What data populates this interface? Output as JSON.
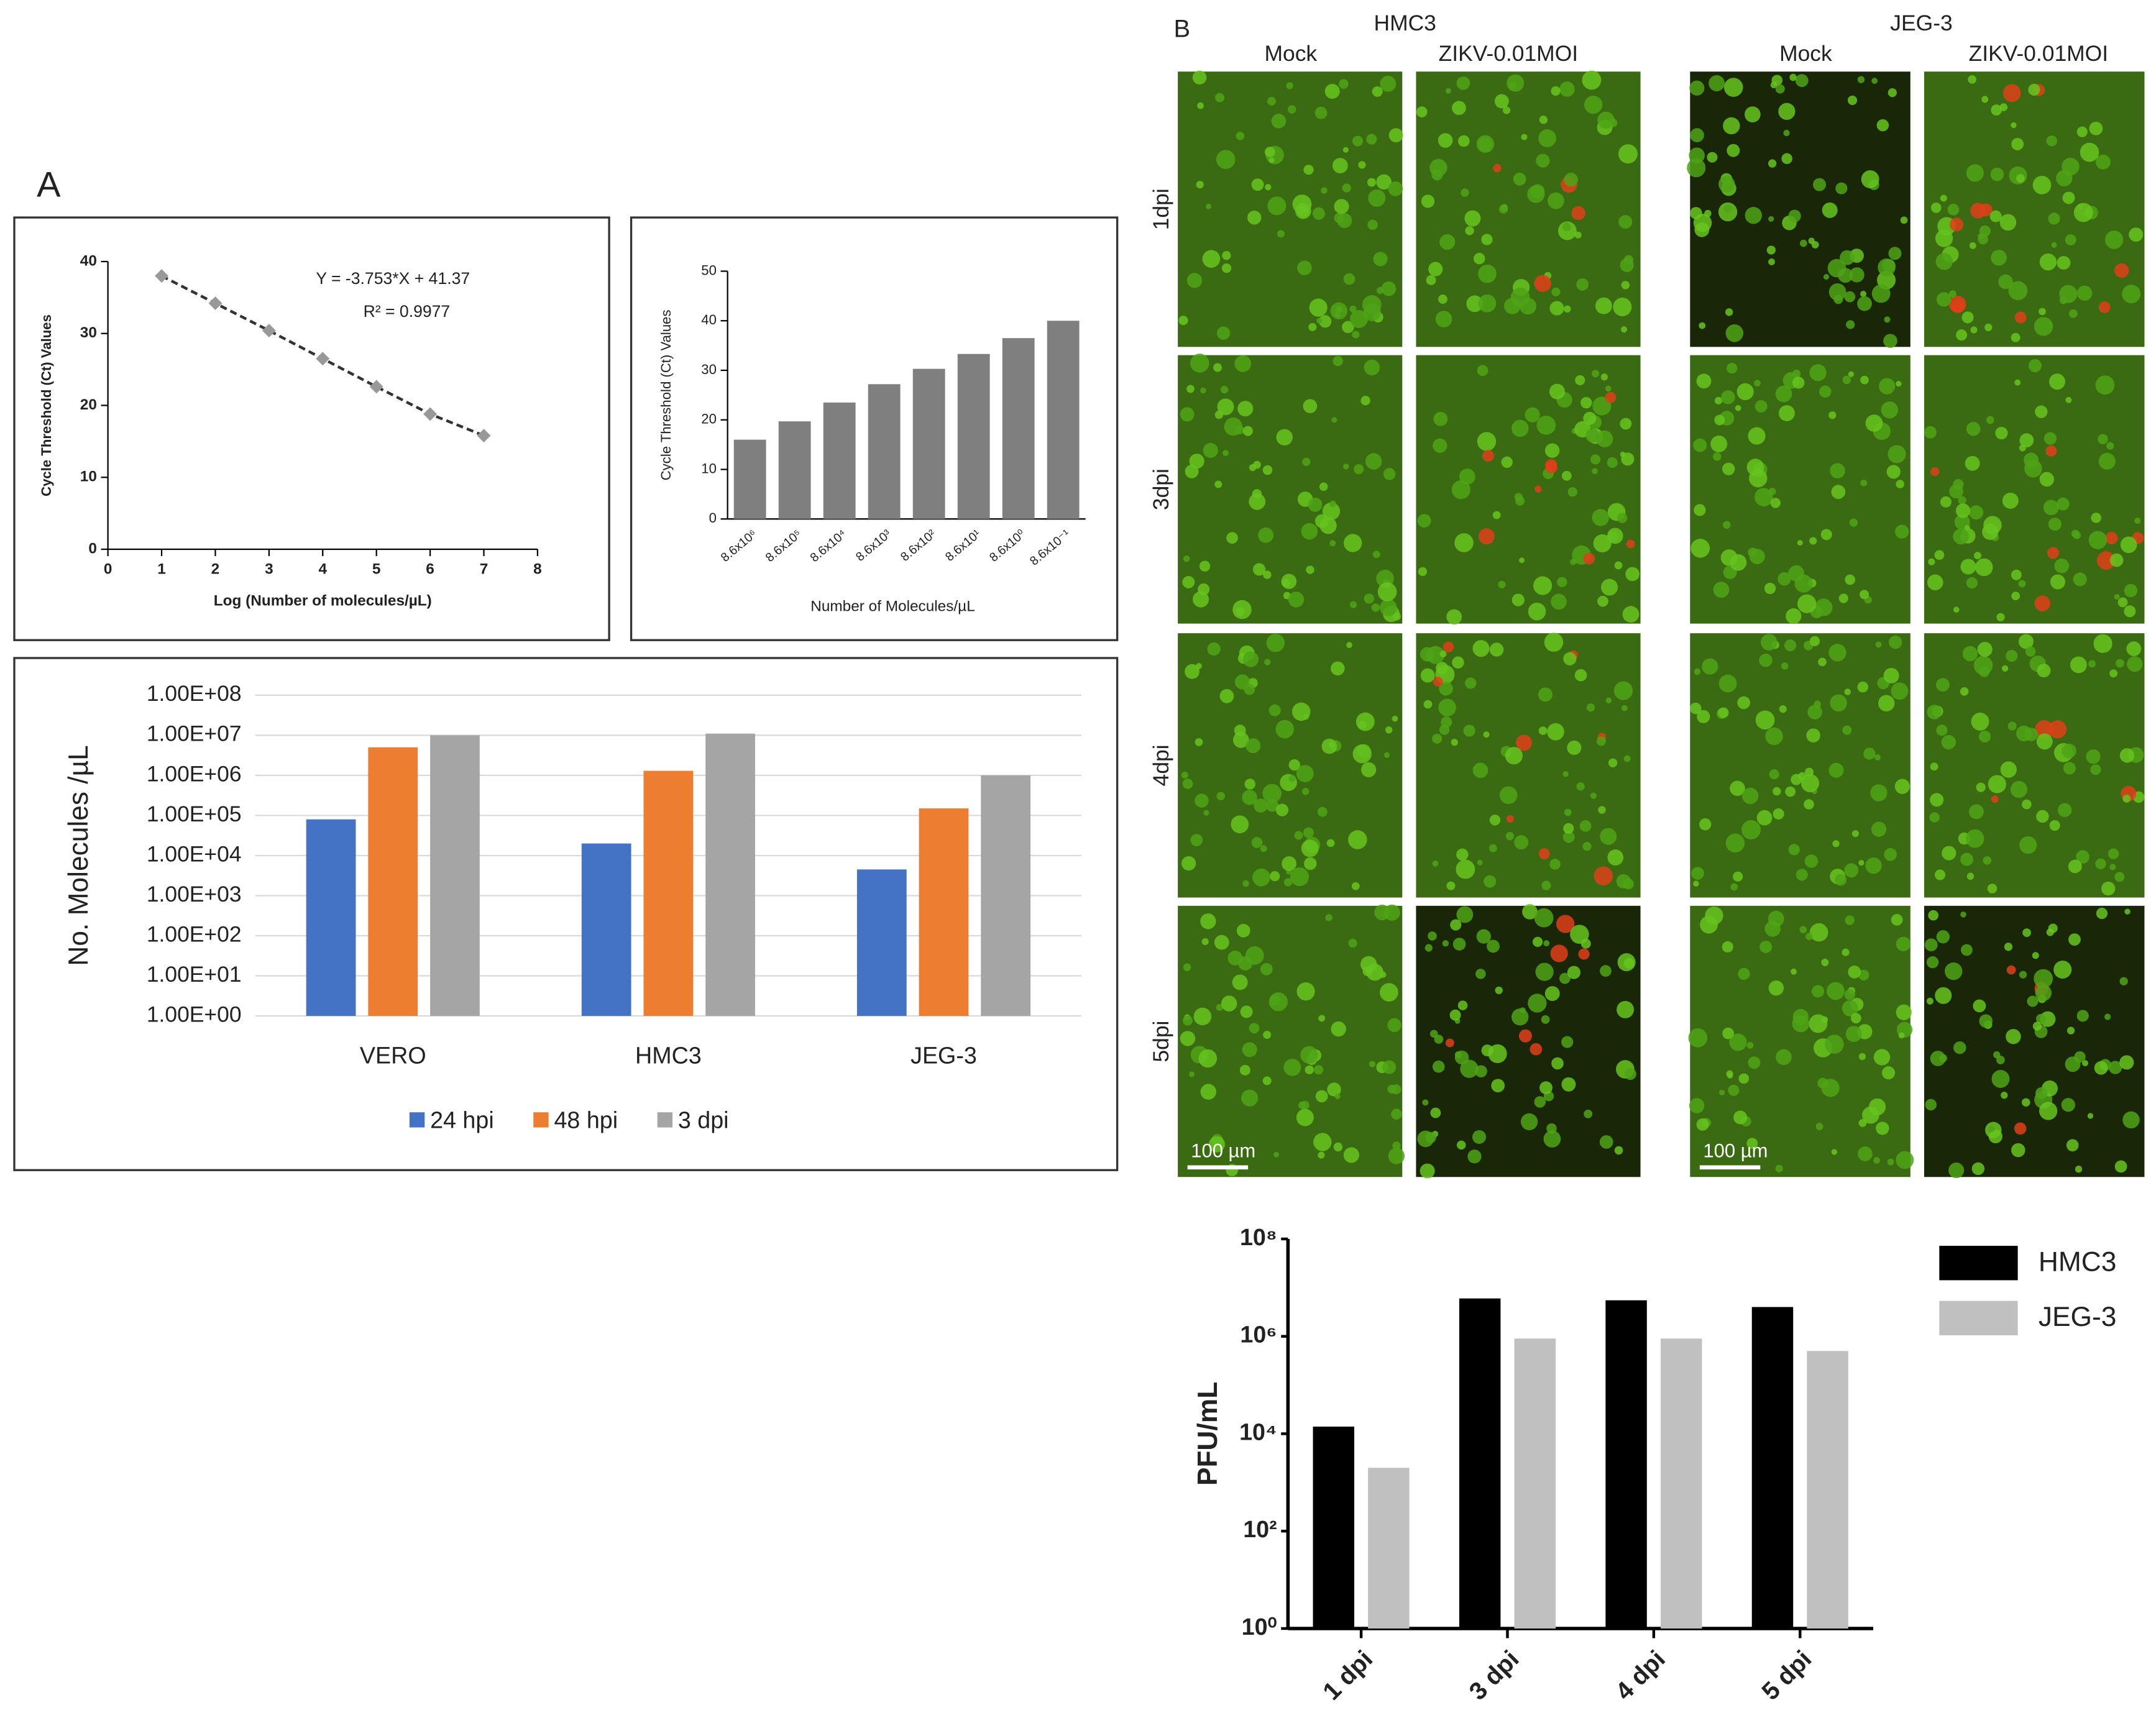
{
  "chart_data": [
    {
      "type": "line",
      "x_label": "Log (Number of molecules/µL)",
      "y_label": "Cycle Threshold (Ct) Values",
      "annotations": [
        "Y = -3.753*X + 41.37",
        "R² = 0.9977"
      ],
      "x": [
        1,
        2,
        3,
        4,
        5,
        6,
        7
      ],
      "y": [
        38,
        34.2,
        30.4,
        26.5,
        22.6,
        18.8,
        15.8
      ],
      "color": "#999999",
      "xlim": [
        0,
        8
      ],
      "xticks": [
        0,
        1,
        2,
        3,
        4,
        5,
        6,
        7,
        8
      ],
      "ylim": [
        0,
        40
      ],
      "yticks": [
        0,
        10,
        20,
        30,
        40
      ],
      "grid": false
    },
    {
      "type": "bar",
      "x_label": "Number of Molecules/µL",
      "y_label": "Cycle Threshold (Ct) Values",
      "categories": [
        "8.6x10⁶",
        "8.6x10⁵",
        "8.6x10⁴",
        "8.6x10³",
        "8.6x10²",
        "8.6x10¹",
        "8.6x10⁰",
        "8.6x10⁻¹"
      ],
      "values": [
        16,
        19.7,
        23.5,
        27.2,
        30.3,
        33.3,
        36.5,
        40
      ],
      "color": "#7f7f7f",
      "ylim": [
        0,
        50
      ],
      "yticks": [
        0,
        10,
        20,
        30,
        40,
        50
      ],
      "grid": false
    },
    {
      "type": "grouped-bar",
      "y_label": "No. Molecules /µL",
      "log_scale": true,
      "grid": true,
      "legend": "bottom",
      "categories": [
        "VERO",
        "HMC3",
        "JEG-3"
      ],
      "series": [
        {
          "name": "24 hpi",
          "color": "#4472c4",
          "values": [
            80000,
            20000,
            4500
          ]
        },
        {
          "name": "48 hpi",
          "color": "#ed7d31",
          "values": [
            5000000,
            1300000,
            150000
          ]
        },
        {
          "name": "3 dpi",
          "color": "#a5a5a5",
          "values": [
            10000000,
            11000000,
            1000000
          ]
        }
      ],
      "ylim": [
        1,
        100000000
      ],
      "yticks": [
        {
          "value": 1,
          "label": "1.00E+00"
        },
        {
          "value": 10,
          "label": "1.00E+01"
        },
        {
          "value": 100,
          "label": "1.00E+02"
        },
        {
          "value": 1000,
          "label": "1.00E+03"
        },
        {
          "value": 10000,
          "label": "1.00E+04"
        },
        {
          "value": 100000,
          "label": "1.00E+05"
        },
        {
          "value": 1000000,
          "label": "1.00E+06"
        },
        {
          "value": 10000000,
          "label": "1.00E+07"
        },
        {
          "value": 100000000,
          "label": "1.00E+08"
        }
      ]
    },
    {
      "type": "grouped-bar",
      "y_label": "PFU/mL",
      "log_scale": true,
      "grid": false,
      "legend": "right",
      "categories": [
        "1 dpi",
        "3 dpi",
        "4 dpi",
        "5 dpi"
      ],
      "series": [
        {
          "name": "HMC3",
          "color": "#000000",
          "values": [
            14000,
            6000000,
            5500000,
            4000000
          ]
        },
        {
          "name": "JEG-3",
          "color": "#c0c0c0",
          "values": [
            2000,
            900000,
            900000,
            500000
          ]
        }
      ],
      "ylim": [
        1,
        100000000
      ],
      "yticks": [
        {
          "value": 1,
          "label": "10⁰"
        },
        {
          "value": 100,
          "label": "10²"
        },
        {
          "value": 10000,
          "label": "10⁴"
        },
        {
          "value": 1000000,
          "label": "10⁶"
        },
        {
          "value": 100000000,
          "label": "10⁸"
        }
      ]
    }
  ],
  "panel_labels": [
    "A",
    "B"
  ],
  "micrographs": {
    "cell_lines": [
      "HMC3",
      "JEG-3"
    ],
    "conditions": [
      "Mock",
      "ZIKV-0.01MOI"
    ],
    "timepoints": [
      "1dpi",
      "3dpi",
      "4dpi",
      "5dpi"
    ],
    "scale_bar": "100 µm"
  }
}
